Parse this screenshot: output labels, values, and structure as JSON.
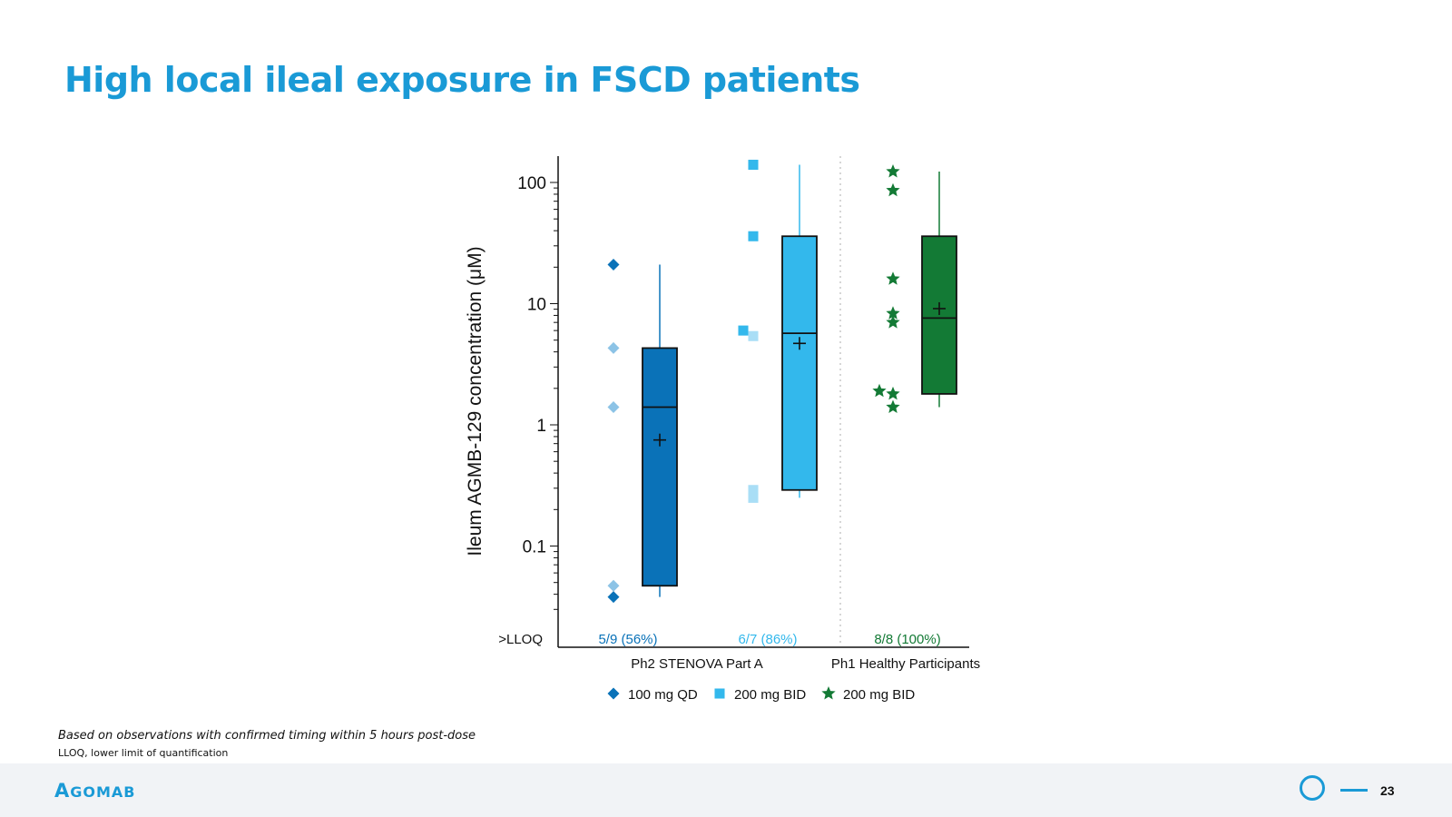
{
  "slide": {
    "title": "High local ileal exposure in FSCD patients",
    "title_color": "#1a9ad6",
    "footnote_1": "Based on observations with confirmed timing within 5 hours post-dose",
    "footnote_2": "LLOQ, lower limit of quantification",
    "brand_initial": "A",
    "brand_rest": "GOMAB",
    "brand_color": "#1a9ad6",
    "page_number": "23"
  },
  "chart_data": {
    "type": "box",
    "ylabel": "Ileum AGMB-129 concentration (μM)",
    "yscale": "log",
    "ylim": [
      0.03,
      170
    ],
    "yticks": [
      {
        "value": 100,
        "label": "100"
      },
      {
        "value": 10,
        "label": "10"
      },
      {
        "value": 1,
        "label": "1"
      },
      {
        "value": 0.1,
        "label": "0.1"
      }
    ],
    "lloq_label": ">LLOQ",
    "groups": [
      {
        "label": "Ph2 STENOVA Part A",
        "series_index": [
          0,
          1
        ]
      },
      {
        "label": "Ph1 Healthy Participants",
        "series_index": [
          2
        ]
      }
    ],
    "series": [
      {
        "name": "100 mg QD",
        "marker": "diamond",
        "color": "#0a72b8",
        "light_color": "#8cc3e6",
        "lloq_text": "5/9 (56%)",
        "points": [
          {
            "y": 21,
            "light": false
          },
          {
            "y": 4.3,
            "light": true
          },
          {
            "y": 1.4,
            "light": true
          },
          {
            "y": 0.047,
            "light": true
          },
          {
            "y": 0.038,
            "light": false
          }
        ],
        "box": {
          "whisker_low": 0.038,
          "q1": 0.047,
          "median": 1.4,
          "q3": 4.3,
          "whisker_high": 21,
          "mean": 0.75
        }
      },
      {
        "name": "200 mg BID",
        "marker": "square",
        "color": "#33b8ec",
        "light_color": "#a9def6",
        "lloq_text": "6/7 (86%)",
        "points": [
          {
            "y": 140,
            "light": false
          },
          {
            "y": 36,
            "light": false
          },
          {
            "y": 6.0,
            "light": false
          },
          {
            "y": 5.4,
            "light": true
          },
          {
            "y": 0.29,
            "light": true
          },
          {
            "y": 0.25,
            "light": true
          }
        ],
        "box": {
          "whisker_low": 0.25,
          "q1": 0.29,
          "median": 5.7,
          "q3": 36,
          "whisker_high": 140,
          "mean": 4.7
        }
      },
      {
        "name": "200 mg BID",
        "marker": "star",
        "color": "#137a35",
        "light_color": "#137a35",
        "lloq_text": "8/8 (100%)",
        "points": [
          {
            "y": 123,
            "light": false
          },
          {
            "y": 86,
            "light": false
          },
          {
            "y": 16,
            "light": false
          },
          {
            "y": 8.3,
            "light": false
          },
          {
            "y": 7.0,
            "light": false
          },
          {
            "y": 1.9,
            "light": false
          },
          {
            "y": 1.8,
            "light": false
          },
          {
            "y": 1.4,
            "light": false
          }
        ],
        "box": {
          "whisker_low": 1.4,
          "q1": 1.8,
          "median": 7.6,
          "q3": 36,
          "whisker_high": 123,
          "mean": 9.1
        }
      }
    ],
    "grid": false,
    "legend_position": "bottom"
  }
}
